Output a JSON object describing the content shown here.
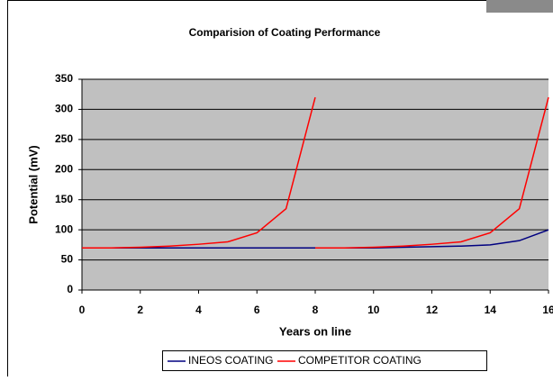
{
  "chart_data": {
    "type": "line",
    "title": "Comparision of Coating Performance",
    "x_label": "Years on line",
    "y_label": "Potential (mV)",
    "x": [
      0,
      1,
      2,
      3,
      4,
      5,
      6,
      7,
      8,
      9,
      10,
      11,
      12,
      13,
      14,
      15,
      16
    ],
    "series": [
      {
        "name": "INEOS COATING",
        "color": "#000080",
        "values": [
          70,
          70,
          70,
          70,
          70,
          70,
          70,
          70,
          70,
          70,
          70,
          71,
          72,
          73,
          75,
          82,
          100
        ]
      },
      {
        "name": "COMPETITOR COATING",
        "color": "#ff0000",
        "x": [
          0,
          1,
          2,
          3,
          4,
          5,
          6,
          7,
          8,
          null,
          8,
          9,
          10,
          11,
          12,
          13,
          14,
          15,
          16
        ],
        "values": [
          70,
          70,
          71,
          73,
          76,
          80,
          95,
          135,
          320,
          null,
          70,
          70,
          71,
          73,
          76,
          80,
          95,
          135,
          320
        ]
      }
    ],
    "xlim": [
      0,
      16
    ],
    "ylim": [
      0,
      350
    ],
    "xticks": [
      0,
      2,
      4,
      6,
      8,
      10,
      12,
      14,
      16
    ],
    "yticks": [
      0,
      50,
      100,
      150,
      200,
      250,
      300,
      350
    ],
    "grid": true,
    "plot_background": "#c0c0c0",
    "legend": "bottom"
  }
}
